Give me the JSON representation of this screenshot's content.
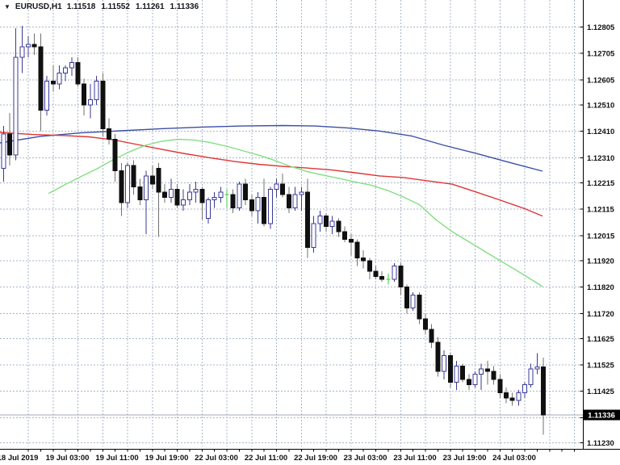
{
  "header": {
    "tick_icon": "▼",
    "symbol_period": "EURUSD,H1",
    "open": "1.11518",
    "high": "1.11552",
    "low": "1.11261",
    "close": "1.11336"
  },
  "colors": {
    "background": "#ffffff",
    "grid": "#a9b5c9",
    "axis_line": "#000000",
    "axis_text": "#111111",
    "bull_border": "#3a3a99",
    "bull_fill": "#ffffff",
    "bear_fill": "#101010",
    "bear_wick": "#707070",
    "doji": "#3dcc3d",
    "ma_blue": "#3d4fa5",
    "ma_red": "#e03434",
    "ma_green": "#82df82",
    "bid_line": "#a3a9b4",
    "price_badge_bg": "#000000",
    "price_badge_text": "#ffffff"
  },
  "price_axis_labels": [
    "1.12805",
    "1.12705",
    "1.12605",
    "1.12510",
    "1.12410",
    "1.12310",
    "1.12215",
    "1.12115",
    "1.12015",
    "1.11920",
    "1.11820",
    "1.11720",
    "1.11625",
    "1.11525",
    "1.11425",
    "1.11230"
  ],
  "current_price_label": "1.11336",
  "chart_data": {
    "type": "candlestick",
    "title": "EURUSD,H1",
    "symbol": "EURUSD",
    "timeframe": "H1",
    "current_ohlc": {
      "open": 1.11518,
      "high": 1.11552,
      "low": 1.11261,
      "close": 1.11336
    },
    "ylim": [
      1.1123,
      1.12805
    ],
    "grid": "on",
    "grid_prices": [
      1.12805,
      1.12705,
      1.12605,
      1.1251,
      1.1241,
      1.1231,
      1.12215,
      1.12115,
      1.12015,
      1.1192,
      1.1182,
      1.1172,
      1.11625,
      1.11525,
      1.11425,
      1.11325,
      1.1123
    ],
    "hidden_grid_labels": [
      1.11325
    ],
    "x_labels": [
      {
        "label": "18 Jul 2019",
        "index": 4
      },
      {
        "label": "19 Jul 03:00",
        "index": 12
      },
      {
        "label": "19 Jul 11:00",
        "index": 20
      },
      {
        "label": "19 Jul 19:00",
        "index": 28
      },
      {
        "label": "22 Jul 03:00",
        "index": 36
      },
      {
        "label": "22 Jul 11:00",
        "index": 44
      },
      {
        "label": "22 Jul 19:00",
        "index": 52
      },
      {
        "label": "23 Jul 03:00",
        "index": 60
      },
      {
        "label": "23 Jul 11:00",
        "index": 68
      },
      {
        "label": "23 Jul 19:00",
        "index": 76
      },
      {
        "label": "24 Jul 03:00",
        "index": 84
      }
    ],
    "candles": [
      {
        "t": "2019.07.18 15:00",
        "o": 1.1227,
        "h": 1.1243,
        "l": 1.1222,
        "c": 1.124
      },
      {
        "t": "2019.07.18 16:00",
        "o": 1.124,
        "h": 1.1248,
        "l": 1.1228,
        "c": 1.1232
      },
      {
        "t": "2019.07.18 17:00",
        "o": 1.1232,
        "h": 1.128,
        "l": 1.123,
        "c": 1.1269
      },
      {
        "t": "2019.07.18 18:00",
        "o": 1.1269,
        "h": 1.1281,
        "l": 1.1263,
        "c": 1.1273
      },
      {
        "t": "2019.07.18 19:00",
        "o": 1.1273,
        "h": 1.1277,
        "l": 1.1269,
        "c": 1.1274
      },
      {
        "t": "2019.07.18 20:00",
        "o": 1.1274,
        "h": 1.1278,
        "l": 1.127,
        "c": 1.1273
      },
      {
        "t": "2019.07.18 21:00",
        "o": 1.1273,
        "h": 1.1278,
        "l": 1.1241,
        "c": 1.1249
      },
      {
        "t": "2019.07.18 22:00",
        "o": 1.1249,
        "h": 1.1262,
        "l": 1.1247,
        "c": 1.126
      },
      {
        "t": "2019.07.18 23:00",
        "o": 1.126,
        "h": 1.1266,
        "l": 1.1256,
        "c": 1.1259
      },
      {
        "t": "2019.07.19 00:00",
        "o": 1.1259,
        "h": 1.1266,
        "l": 1.1257,
        "c": 1.1263
      },
      {
        "t": "2019.07.19 01:00",
        "o": 1.1263,
        "h": 1.1266,
        "l": 1.126,
        "c": 1.1265
      },
      {
        "t": "2019.07.19 02:00",
        "o": 1.1265,
        "h": 1.1269,
        "l": 1.1262,
        "c": 1.1267
      },
      {
        "t": "2019.07.19 03:00",
        "o": 1.1267,
        "h": 1.1269,
        "l": 1.1258,
        "c": 1.1259
      },
      {
        "t": "2019.07.19 04:00",
        "o": 1.1259,
        "h": 1.1261,
        "l": 1.1247,
        "c": 1.1251
      },
      {
        "t": "2019.07.19 05:00",
        "o": 1.1251,
        "h": 1.1259,
        "l": 1.1246,
        "c": 1.1253
      },
      {
        "t": "2019.07.19 06:00",
        "o": 1.1253,
        "h": 1.1262,
        "l": 1.1251,
        "c": 1.126
      },
      {
        "t": "2019.07.19 07:00",
        "o": 1.126,
        "h": 1.1263,
        "l": 1.1239,
        "c": 1.1242
      },
      {
        "t": "2019.07.19 08:00",
        "o": 1.1242,
        "h": 1.1246,
        "l": 1.1236,
        "c": 1.1238
      },
      {
        "t": "2019.07.19 09:00",
        "o": 1.1238,
        "h": 1.124,
        "l": 1.1222,
        "c": 1.1226
      },
      {
        "t": "2019.07.19 10:00",
        "o": 1.1226,
        "h": 1.1229,
        "l": 1.1209,
        "c": 1.1214
      },
      {
        "t": "2019.07.19 11:00",
        "o": 1.1214,
        "h": 1.1229,
        "l": 1.1212,
        "c": 1.1228
      },
      {
        "t": "2019.07.19 12:00",
        "o": 1.1228,
        "h": 1.123,
        "l": 1.1217,
        "c": 1.122
      },
      {
        "t": "2019.07.19 13:00",
        "o": 1.122,
        "h": 1.1223,
        "l": 1.1213,
        "c": 1.1215
      },
      {
        "t": "2019.07.19 14:00",
        "o": 1.1215,
        "h": 1.1226,
        "l": 1.1202,
        "c": 1.1224
      },
      {
        "t": "2019.07.19 15:00",
        "o": 1.1224,
        "h": 1.1228,
        "l": 1.1219,
        "c": 1.1221
      },
      {
        "t": "2019.07.19 16:00",
        "o": 1.1227,
        "h": 1.1229,
        "l": 1.1201,
        "c": 1.1218
      },
      {
        "t": "2019.07.19 17:00",
        "o": 1.1218,
        "h": 1.1221,
        "l": 1.1214,
        "c": 1.1216
      },
      {
        "t": "2019.07.19 18:00",
        "o": 1.1216,
        "h": 1.1223,
        "l": 1.1214,
        "c": 1.1219
      },
      {
        "t": "2019.07.19 19:00",
        "o": 1.1219,
        "h": 1.1221,
        "l": 1.1212,
        "c": 1.1213
      },
      {
        "t": "2019.07.19 20:00",
        "o": 1.1213,
        "h": 1.1219,
        "l": 1.1211,
        "c": 1.1215
      },
      {
        "t": "2019.07.19 21:00",
        "o": 1.1215,
        "h": 1.1221,
        "l": 1.1213,
        "c": 1.1218
      },
      {
        "t": "2019.07.19 22:00",
        "o": 1.1218,
        "h": 1.1222,
        "l": 1.1214,
        "c": 1.1219
      },
      {
        "t": "2019.07.19 23:00",
        "o": 1.1219,
        "h": 1.122,
        "l": 1.12075,
        "c": 1.1214
      },
      {
        "t": "2019.07.22 00:00",
        "o": 1.1208,
        "h": 1.1216,
        "l": 1.1206,
        "c": 1.1215
      },
      {
        "t": "2019.07.22 01:00",
        "o": 1.1215,
        "h": 1.1218,
        "l": 1.1212,
        "c": 1.1216
      },
      {
        "t": "2019.07.22 02:00",
        "o": 1.1216,
        "h": 1.122,
        "l": 1.1214,
        "c": 1.1218
      },
      {
        "t": "2019.07.22 03:00",
        "o": 1.1217,
        "h": 1.1219,
        "l": 1.1212,
        "c": 1.1217
      },
      {
        "t": "2019.07.22 04:00",
        "o": 1.1217,
        "h": 1.1219,
        "l": 1.121,
        "c": 1.1212
      },
      {
        "t": "2019.07.22 05:00",
        "o": 1.1212,
        "h": 1.1222,
        "l": 1.1211,
        "c": 1.1221
      },
      {
        "t": "2019.07.22 06:00",
        "o": 1.1221,
        "h": 1.1223,
        "l": 1.1213,
        "c": 1.1215
      },
      {
        "t": "2019.07.22 07:00",
        "o": 1.1215,
        "h": 1.1217,
        "l": 1.1209,
        "c": 1.1211
      },
      {
        "t": "2019.07.22 08:00",
        "o": 1.1211,
        "h": 1.1218,
        "l": 1.1206,
        "c": 1.1216
      },
      {
        "t": "2019.07.22 09:00",
        "o": 1.1216,
        "h": 1.1223,
        "l": 1.1205,
        "c": 1.1206
      },
      {
        "t": "2019.07.22 10:00",
        "o": 1.1206,
        "h": 1.122,
        "l": 1.1204,
        "c": 1.1219
      },
      {
        "t": "2019.07.22 11:00",
        "o": 1.1219,
        "h": 1.1223,
        "l": 1.1216,
        "c": 1.1221
      },
      {
        "t": "2019.07.22 12:00",
        "o": 1.1221,
        "h": 1.1225,
        "l": 1.1216,
        "c": 1.1217
      },
      {
        "t": "2019.07.22 13:00",
        "o": 1.1217,
        "h": 1.122,
        "l": 1.121,
        "c": 1.1212
      },
      {
        "t": "2019.07.22 14:00",
        "o": 1.1212,
        "h": 1.122,
        "l": 1.1211,
        "c": 1.1217
      },
      {
        "t": "2019.07.22 15:00",
        "o": 1.1217,
        "h": 1.122,
        "l": 1.1211,
        "c": 1.1218
      },
      {
        "t": "2019.07.22 16:00",
        "o": 1.1218,
        "h": 1.1223,
        "l": 1.1193,
        "c": 1.1197
      },
      {
        "t": "2019.07.22 17:00",
        "o": 1.1197,
        "h": 1.1209,
        "l": 1.1195,
        "c": 1.1206
      },
      {
        "t": "2019.07.22 18:00",
        "o": 1.1206,
        "h": 1.1211,
        "l": 1.1203,
        "c": 1.1209
      },
      {
        "t": "2019.07.22 19:00",
        "o": 1.1209,
        "h": 1.121,
        "l": 1.1203,
        "c": 1.1205
      },
      {
        "t": "2019.07.22 20:00",
        "o": 1.1205,
        "h": 1.1209,
        "l": 1.1202,
        "c": 1.1207
      },
      {
        "t": "2019.07.22 21:00",
        "o": 1.1207,
        "h": 1.1208,
        "l": 1.1201,
        "c": 1.1203
      },
      {
        "t": "2019.07.22 22:00",
        "o": 1.1203,
        "h": 1.1205,
        "l": 1.1199,
        "c": 1.12
      },
      {
        "t": "2019.07.22 23:00",
        "o": 1.12,
        "h": 1.1202,
        "l": 1.1194,
        "c": 1.1199
      },
      {
        "t": "2019.07.23 00:00",
        "o": 1.1199,
        "h": 1.12,
        "l": 1.119,
        "c": 1.1193
      },
      {
        "t": "2019.07.23 01:00",
        "o": 1.1193,
        "h": 1.1196,
        "l": 1.1189,
        "c": 1.1192
      },
      {
        "t": "2019.07.23 02:00",
        "o": 1.1192,
        "h": 1.1193,
        "l": 1.1185,
        "c": 1.1188
      },
      {
        "t": "2019.07.23 03:00",
        "o": 1.1188,
        "h": 1.119,
        "l": 1.1185,
        "c": 1.1186
      },
      {
        "t": "2019.07.23 04:00",
        "o": 1.1186,
        "h": 1.1188,
        "l": 1.1184,
        "c": 1.1185
      },
      {
        "t": "2019.07.23 05:00",
        "o": 1.1185,
        "h": 1.1187,
        "l": 1.1183,
        "c": 1.1185
      },
      {
        "t": "2019.07.23 06:00",
        "o": 1.1185,
        "h": 1.1191,
        "l": 1.1184,
        "c": 1.119
      },
      {
        "t": "2019.07.23 07:00",
        "o": 1.119,
        "h": 1.1191,
        "l": 1.1179,
        "c": 1.1182
      },
      {
        "t": "2019.07.23 08:00",
        "o": 1.1182,
        "h": 1.1183,
        "l": 1.1172,
        "c": 1.1174
      },
      {
        "t": "2019.07.23 09:00",
        "o": 1.1174,
        "h": 1.118,
        "l": 1.1173,
        "c": 1.1179
      },
      {
        "t": "2019.07.23 10:00",
        "o": 1.1179,
        "h": 1.118,
        "l": 1.1168,
        "c": 1.117
      },
      {
        "t": "2019.07.23 11:00",
        "o": 1.117,
        "h": 1.1172,
        "l": 1.1164,
        "c": 1.1166
      },
      {
        "t": "2019.07.23 12:00",
        "o": 1.1166,
        "h": 1.1168,
        "l": 1.1159,
        "c": 1.1161
      },
      {
        "t": "2019.07.23 13:00",
        "o": 1.1161,
        "h": 1.1163,
        "l": 1.1148,
        "c": 1.115
      },
      {
        "t": "2019.07.23 14:00",
        "o": 1.115,
        "h": 1.1158,
        "l": 1.1147,
        "c": 1.1156
      },
      {
        "t": "2019.07.23 15:00",
        "o": 1.1156,
        "h": 1.1157,
        "l": 1.1144,
        "c": 1.1146
      },
      {
        "t": "2019.07.23 16:00",
        "o": 1.1146,
        "h": 1.1154,
        "l": 1.1143,
        "c": 1.1152
      },
      {
        "t": "2019.07.23 17:00",
        "o": 1.1152,
        "h": 1.1153,
        "l": 1.1146,
        "c": 1.1147
      },
      {
        "t": "2019.07.23 18:00",
        "o": 1.1147,
        "h": 1.1149,
        "l": 1.1143,
        "c": 1.1145
      },
      {
        "t": "2019.07.23 19:00",
        "o": 1.1145,
        "h": 1.115,
        "l": 1.1144,
        "c": 1.1149
      },
      {
        "t": "2019.07.23 20:00",
        "o": 1.1149,
        "h": 1.1153,
        "l": 1.1143,
        "c": 1.1151
      },
      {
        "t": "2019.07.23 21:00",
        "o": 1.1151,
        "h": 1.1154,
        "l": 1.1145,
        "c": 1.115
      },
      {
        "t": "2019.07.23 22:00",
        "o": 1.115,
        "h": 1.1152,
        "l": 1.1145,
        "c": 1.1147
      },
      {
        "t": "2019.07.23 23:00",
        "o": 1.1147,
        "h": 1.1149,
        "l": 1.114,
        "c": 1.1142
      },
      {
        "t": "2019.07.24 00:00",
        "o": 1.1142,
        "h": 1.1144,
        "l": 1.1138,
        "c": 1.114
      },
      {
        "t": "2019.07.24 01:00",
        "o": 1.114,
        "h": 1.1142,
        "l": 1.1137,
        "c": 1.1139
      },
      {
        "t": "2019.07.24 02:00",
        "o": 1.1139,
        "h": 1.1143,
        "l": 1.1137,
        "c": 1.1142
      },
      {
        "t": "2019.07.24 03:00",
        "o": 1.1142,
        "h": 1.1146,
        "l": 1.114,
        "c": 1.1145
      },
      {
        "t": "2019.07.24 04:00",
        "o": 1.1145,
        "h": 1.1153,
        "l": 1.1144,
        "c": 1.1151
      },
      {
        "t": "2019.07.24 05:00",
        "o": 1.1151,
        "h": 1.1157,
        "l": 1.1149,
        "c": 1.11518
      },
      {
        "t": "2019.07.24 06:00",
        "o": 1.11518,
        "h": 1.11552,
        "l": 1.11261,
        "c": 1.11336
      }
    ],
    "series": [
      {
        "name": "ma-slow-blue",
        "color": "#3d4fa5",
        "points": [
          [
            0,
            1.12366
          ],
          [
            50,
            1.12391
          ],
          [
            100,
            1.12404
          ],
          [
            150,
            1.12412
          ],
          [
            200,
            1.1242
          ],
          [
            250,
            1.12426
          ],
          [
            300,
            1.1243
          ],
          [
            350,
            1.12432
          ],
          [
            390,
            1.1243
          ],
          [
            430,
            1.12423
          ],
          [
            470,
            1.12411
          ],
          [
            510,
            1.12392
          ],
          [
            550,
            1.12357
          ],
          [
            590,
            1.12326
          ],
          [
            630,
            1.12293
          ],
          [
            672,
            1.12259
          ]
        ]
      },
      {
        "name": "ma-medium-red",
        "color": "#e03434",
        "points": [
          [
            0,
            1.12406
          ],
          [
            40,
            1.12398
          ],
          [
            80,
            1.12394
          ],
          [
            110,
            1.12389
          ],
          [
            140,
            1.12378
          ],
          [
            170,
            1.1236
          ],
          [
            200,
            1.12342
          ],
          [
            230,
            1.12325
          ],
          [
            260,
            1.1231
          ],
          [
            290,
            1.12296
          ],
          [
            320,
            1.12285
          ],
          [
            350,
            1.12277
          ],
          [
            380,
            1.12271
          ],
          [
            410,
            1.12264
          ],
          [
            440,
            1.12253
          ],
          [
            470,
            1.12241
          ],
          [
            500,
            1.12235
          ],
          [
            530,
            1.12222
          ],
          [
            560,
            1.1221
          ],
          [
            590,
            1.1218
          ],
          [
            620,
            1.12149
          ],
          [
            650,
            1.12117
          ],
          [
            672,
            1.12089
          ]
        ]
      },
      {
        "name": "ma-fast-green",
        "color": "#82df82",
        "points": [
          [
            60,
            1.12174
          ],
          [
            80,
            1.12207
          ],
          [
            100,
            1.12238
          ],
          [
            120,
            1.12268
          ],
          [
            140,
            1.12302
          ],
          [
            160,
            1.12332
          ],
          [
            180,
            1.12357
          ],
          [
            200,
            1.12372
          ],
          [
            220,
            1.1238
          ],
          [
            240,
            1.12377
          ],
          [
            260,
            1.12368
          ],
          [
            280,
            1.12354
          ],
          [
            300,
            1.12337
          ],
          [
            320,
            1.1232
          ],
          [
            340,
            1.123
          ],
          [
            360,
            1.12277
          ],
          [
            380,
            1.12258
          ],
          [
            400,
            1.12244
          ],
          [
            420,
            1.12232
          ],
          [
            440,
            1.12218
          ],
          [
            460,
            1.12206
          ],
          [
            480,
            1.12186
          ],
          [
            500,
            1.12161
          ],
          [
            520,
            1.12131
          ],
          [
            540,
            1.12075
          ],
          [
            560,
            1.1203
          ],
          [
            580,
            1.11993
          ],
          [
            600,
            1.11956
          ],
          [
            620,
            1.11919
          ],
          [
            640,
            1.11883
          ],
          [
            672,
            1.11822
          ]
        ]
      }
    ],
    "bid_price": 1.11336,
    "legend_position": "none"
  }
}
